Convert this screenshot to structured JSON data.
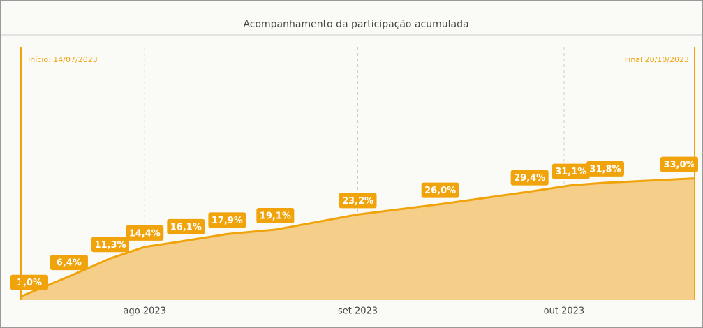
{
  "chart_data": {
    "type": "area",
    "title": "Acompanhamento da participação acumulada",
    "x": [
      "2023-07-14",
      "2023-07-21",
      "2023-07-27",
      "2023-08-01",
      "2023-08-07",
      "2023-08-13",
      "2023-08-20",
      "2023-09-01",
      "2023-09-13",
      "2023-09-26",
      "2023-10-02",
      "2023-10-07",
      "2023-10-20"
    ],
    "series": [
      {
        "color": "#f0a30a",
        "values": [
          1.0,
          6.4,
          11.3,
          14.4,
          16.1,
          17.9,
          19.1,
          23.2,
          26.0,
          29.4,
          31.1,
          31.8,
          33.0
        ],
        "value_labels": [
          "1,0%",
          "6,4%",
          "11,3%",
          "14,4%",
          "16,1%",
          "17,9%",
          "19,1%",
          "23,2%",
          "26,0%",
          "29,4%",
          "31,1%",
          "31,8%",
          "33,0%"
        ]
      }
    ],
    "xlim": [
      "2023-07-14",
      "2023-10-20"
    ],
    "xticks": [
      {
        "value": "2023-08-01",
        "label": "ago 2023"
      },
      {
        "value": "2023-09-01",
        "label": "set 2023"
      },
      {
        "value": "2023-10-01",
        "label": "out 2023"
      }
    ],
    "ylim": [
      0,
      70
    ],
    "grid": true,
    "markers": [
      {
        "x": "2023-07-14",
        "label": "Início: 14/07/2023"
      },
      {
        "x": "2023-10-20",
        "label": "Final 20/10/2023"
      }
    ]
  }
}
